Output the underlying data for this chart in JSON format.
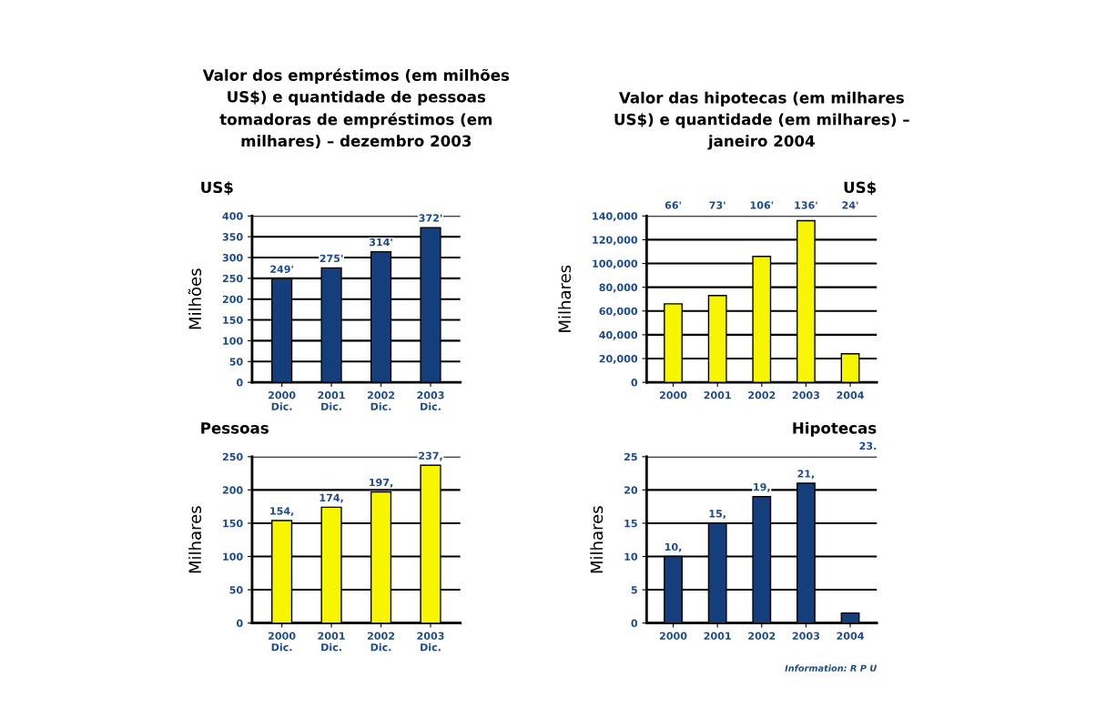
{
  "chart_data": [
    {
      "type": "bar",
      "title": "Valor dos empréstimos (em milhões\nUS$) e quantidade de pessoas\ntomadoras de empréstimos (em\nmilhares) – dezembro 2003",
      "subtitle": "US$",
      "ylabel": "Milhões",
      "categories": [
        "2000\nDic.",
        "2001\nDic.",
        "2002\nDic.",
        "2003\nDic."
      ],
      "values": [
        249,
        275,
        314,
        372
      ],
      "value_labels": [
        "249'",
        "275'",
        "314'",
        "372'"
      ],
      "color": "#143f7c",
      "ylim": [
        0,
        400
      ],
      "yticks": [
        0,
        50,
        100,
        150,
        200,
        250,
        300,
        350,
        400
      ],
      "grid": "y"
    },
    {
      "type": "bar",
      "subtitle": "Pessoas",
      "ylabel": "Milhares",
      "categories": [
        "2000\nDic.",
        "2001\nDic.",
        "2002\nDic.",
        "2003\nDic."
      ],
      "values": [
        154,
        174,
        197,
        237
      ],
      "value_labels": [
        "154,",
        "174,",
        "197,",
        "237,"
      ],
      "color": "#f7f500",
      "ylim": [
        0,
        250
      ],
      "yticks": [
        0,
        50,
        100,
        150,
        200,
        250
      ],
      "grid": "y"
    },
    {
      "type": "bar",
      "title": "Valor das hipotecas (em milhares\nUS$) e quantidade (em milhares) –\njaneiro 2004",
      "subtitle": "US$",
      "ylabel": "Milhares",
      "categories": [
        "2000",
        "2001",
        "2002",
        "2003",
        "2004"
      ],
      "values": [
        66000,
        73000,
        106000,
        136000,
        24000
      ],
      "annotations": [
        "66'",
        "73'",
        "106'",
        "136'",
        "24'"
      ],
      "color": "#f7f500",
      "ylim": [
        0,
        140000
      ],
      "yticks": [
        0,
        {
          "value": 20000,
          "label": "20,000"
        },
        {
          "value": 40000,
          "label": "40,000"
        },
        {
          "value": 60000,
          "label": "60,000"
        },
        {
          "value": 80000,
          "label": "80,000"
        },
        {
          "value": 100000,
          "label": "100,000"
        },
        {
          "value": 120000,
          "label": "120,000"
        },
        {
          "value": 140000,
          "label": "140,000"
        }
      ],
      "grid": "y"
    },
    {
      "type": "bar",
      "subtitle": "Hipotecas",
      "ylabel": "Milhares",
      "categories": [
        "2000",
        "2001",
        "2002",
        "2003",
        "2004"
      ],
      "values": [
        10,
        15,
        19,
        21,
        1.5
      ],
      "value_labels": [
        "10,",
        "15,",
        "19,",
        "21,",
        null
      ],
      "color": "#143f7c",
      "ylim": [
        0,
        25
      ],
      "yticks": [
        0,
        5,
        10,
        15,
        20,
        25
      ],
      "grid": "y",
      "annotations": [
        "23.",
        "Information: R P U"
      ]
    }
  ]
}
